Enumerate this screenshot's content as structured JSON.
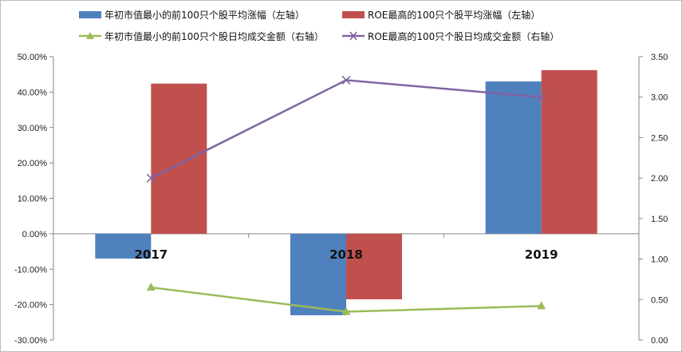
{
  "chart_data": {
    "type": "bar",
    "title": "",
    "categories": [
      "2017",
      "2018",
      "2019"
    ],
    "series": [
      {
        "name": "年初市值最小的前100只个股平均涨幅（左轴）",
        "kind": "bar",
        "axis": "left",
        "color": "#4f81bd",
        "values": [
          -0.07,
          -0.23,
          0.43
        ]
      },
      {
        "name": "ROE最高的100只个股平均涨幅（左轴）",
        "kind": "bar",
        "axis": "left",
        "color": "#c0504d",
        "values": [
          0.424,
          -0.185,
          0.462
        ]
      },
      {
        "name": "年初市值最小的前100只个股日均成交金额（右轴）",
        "kind": "line",
        "marker": "triangle",
        "axis": "right",
        "color": "#9bbb59",
        "values": [
          0.65,
          0.35,
          0.42
        ]
      },
      {
        "name": "ROE最高的100只个股日均成交金额（右轴）",
        "kind": "line",
        "marker": "x",
        "axis": "right",
        "color": "#8064a2",
        "values": [
          2.0,
          3.21,
          3.0
        ]
      }
    ],
    "y_left": {
      "min": -0.3,
      "max": 0.5,
      "step": 0.1,
      "ticks": [
        "-30.00%",
        "-20.00%",
        "-10.00%",
        "0.00%",
        "10.00%",
        "20.00%",
        "30.00%",
        "40.00%",
        "50.00%"
      ]
    },
    "y_right": {
      "min": 0,
      "max": 3.5,
      "step": 0.5,
      "ticks": [
        "0.00",
        "0.50",
        "1.00",
        "1.50",
        "2.00",
        "2.50",
        "3.00",
        "3.50"
      ]
    },
    "grid": false,
    "legend_position": "top"
  }
}
